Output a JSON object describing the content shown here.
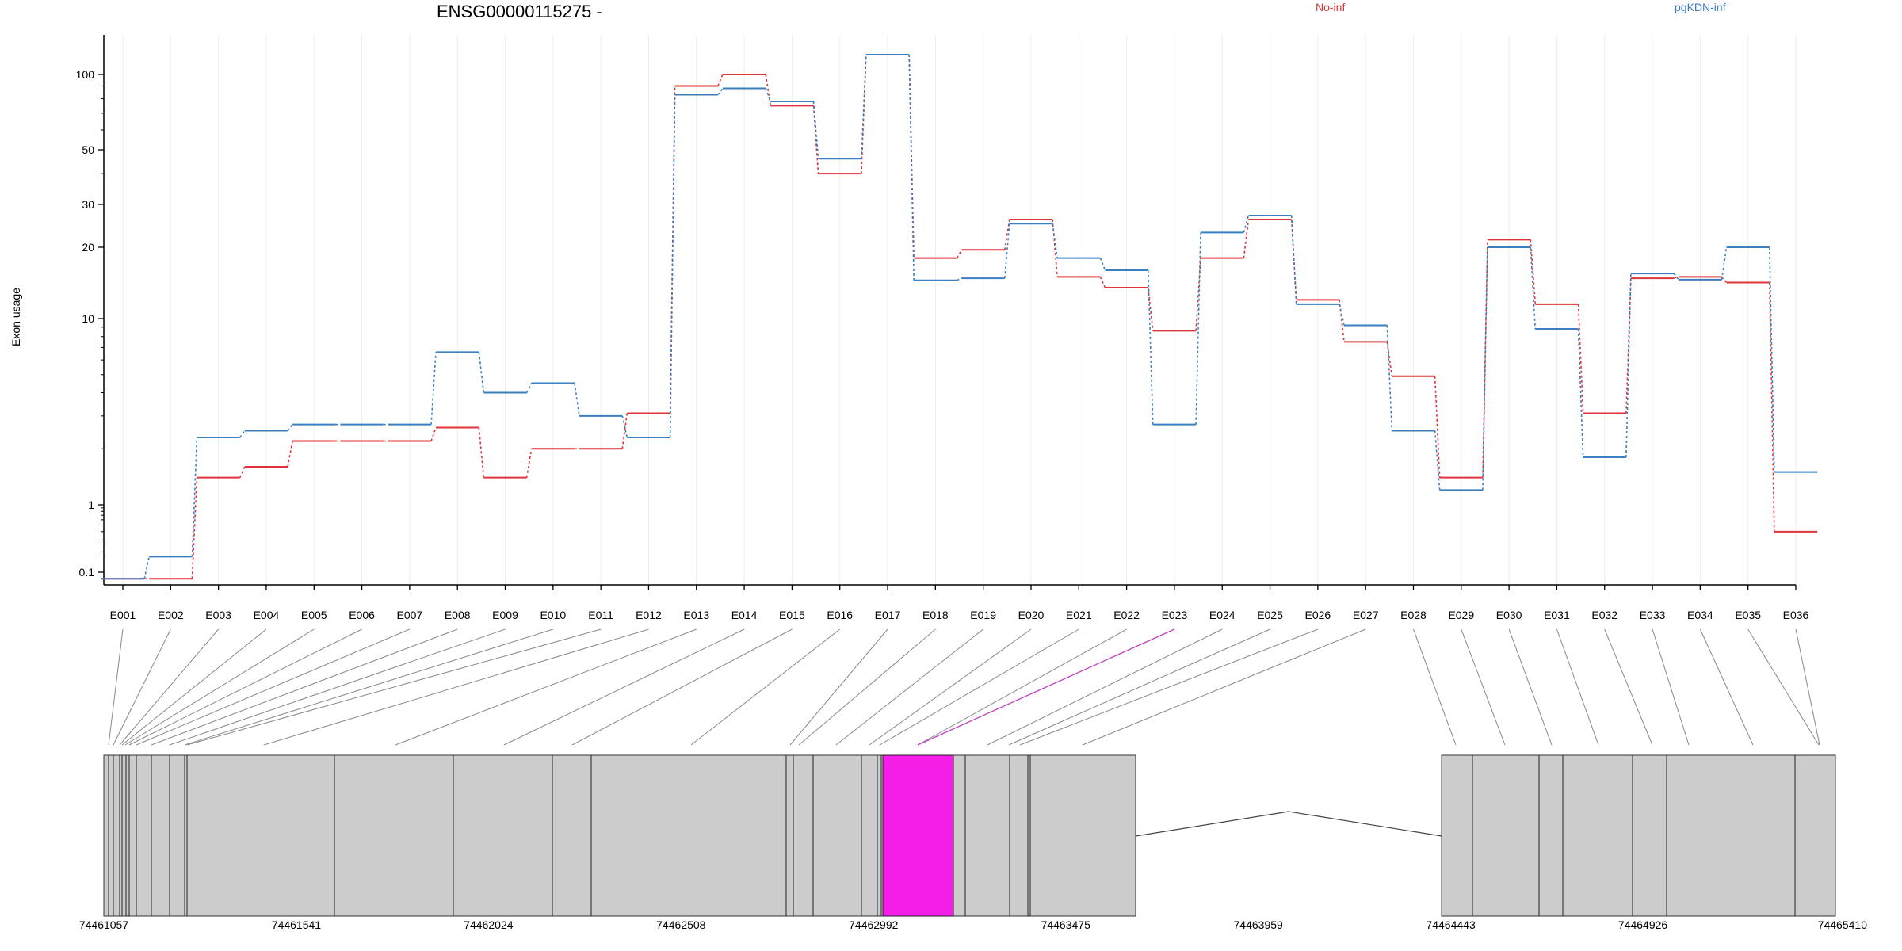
{
  "title": "ENSG00000115275 -",
  "ylabel": "Exon usage",
  "colors": {
    "no_inf": "#e0343a",
    "pgkdn_inf": "#3a7fc2",
    "highlight": "#f41ee6",
    "exon_box": "#cccccc",
    "grid": "#eeeeee"
  },
  "chart_data": {
    "type": "line",
    "title": "ENSG00000115275 -",
    "ylabel": "Exon usage",
    "yscale": "log",
    "yticks": [
      0.1,
      1,
      10,
      20,
      30,
      50,
      100
    ],
    "ylim": [
      0.07,
      140
    ],
    "grid": true,
    "legend_position": "top",
    "categories": [
      "E001",
      "E002",
      "E003",
      "E004",
      "E005",
      "E006",
      "E007",
      "E008",
      "E009",
      "E010",
      "E011",
      "E012",
      "E013",
      "E014",
      "E015",
      "E016",
      "E017",
      "E018",
      "E019",
      "E020",
      "E021",
      "E022",
      "E023",
      "E024",
      "E025",
      "E026",
      "E027",
      "E028",
      "E029",
      "E030",
      "E031",
      "E032",
      "E033",
      "E034",
      "E035",
      "E036"
    ],
    "highlighted_exon": "E023",
    "series": [
      {
        "name": "No-inf",
        "color": "#e0343a",
        "values": [
          0.08,
          0.08,
          1.4,
          1.6,
          2.2,
          2.2,
          2.2,
          2.6,
          1.4,
          2.0,
          2.0,
          3.1,
          90,
          100,
          75,
          40,
          120,
          18,
          19.5,
          26,
          15,
          13.5,
          8.6,
          18,
          26,
          12,
          7.5,
          4.9,
          1.4,
          21.5,
          11.5,
          3.1,
          14.8,
          15,
          14.2,
          0.4
        ]
      },
      {
        "name": "pgKDN-inf",
        "color": "#3a7fc2",
        "values": [
          0.08,
          0.17,
          2.3,
          2.5,
          2.7,
          2.7,
          2.7,
          6.6,
          4.0,
          4.5,
          3.0,
          2.3,
          83,
          88,
          78,
          46,
          120,
          14.5,
          14.8,
          25,
          18,
          16,
          2.7,
          23,
          27,
          11.5,
          9.2,
          2.5,
          1.2,
          20,
          8.8,
          1.8,
          15.5,
          14.6,
          20,
          1.5
        ]
      }
    ],
    "genomic_axis": {
      "ticks": [
        "74461057",
        "74461541",
        "74462024",
        "74462508",
        "74462992",
        "74463475",
        "74463959",
        "74464443",
        "74464926",
        "74465410"
      ]
    }
  }
}
